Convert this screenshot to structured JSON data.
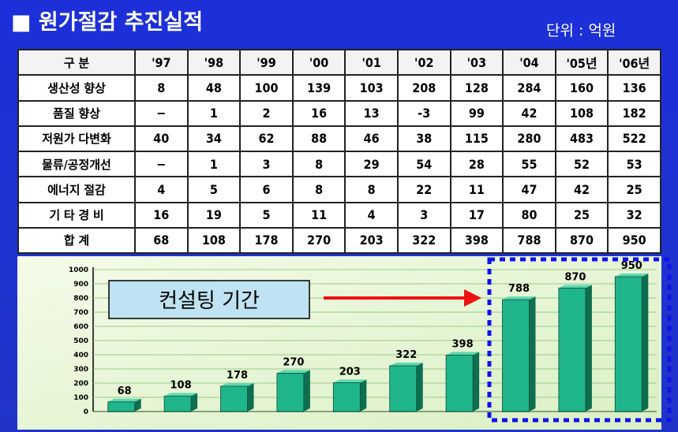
{
  "header": {
    "title": "■ 원가절감 추진실적",
    "unit": "단위 : 억원"
  },
  "table": {
    "header": [
      "구 분",
      "'97",
      "'98",
      "'99",
      "'00",
      "'01",
      "'02",
      "'03",
      "'04",
      "'05년",
      "'06년"
    ],
    "rows": [
      [
        "생산성 향상",
        "8",
        "48",
        "100",
        "139",
        "103",
        "208",
        "128",
        "284",
        "160",
        "136"
      ],
      [
        "품질 향상",
        "−",
        "1",
        "2",
        "16",
        "13",
        "-3",
        "99",
        "42",
        "108",
        "182"
      ],
      [
        "저원가 다변화",
        "40",
        "34",
        "62",
        "88",
        "46",
        "38",
        "115",
        "280",
        "483",
        "522"
      ],
      [
        "물류/공정개선",
        "−",
        "1",
        "3",
        "8",
        "29",
        "54",
        "28",
        "55",
        "52",
        "53"
      ],
      [
        "에너지 절감",
        "4",
        "5",
        "6",
        "8",
        "8",
        "22",
        "11",
        "47",
        "42",
        "25"
      ],
      [
        "기 타 경 비",
        "16",
        "19",
        "5",
        "11",
        "4",
        "3",
        "17",
        "80",
        "25",
        "32"
      ],
      [
        "합 계",
        "68",
        "108",
        "178",
        "270",
        "203",
        "322",
        "398",
        "788",
        "870",
        "950"
      ]
    ]
  },
  "chart_data": {
    "type": "bar",
    "categories": [
      null,
      null,
      null,
      null,
      null,
      null,
      null,
      null,
      null,
      null
    ],
    "values": [
      68,
      108,
      178,
      270,
      203,
      322,
      398,
      788,
      870,
      950
    ],
    "color": "#1fb58a",
    "ylim": [
      0,
      1000
    ],
    "yticks": [
      0,
      100,
      200,
      300,
      400,
      500,
      600,
      700,
      800,
      900,
      1000
    ],
    "grid": true,
    "annotation": "컨설팅 기간"
  }
}
